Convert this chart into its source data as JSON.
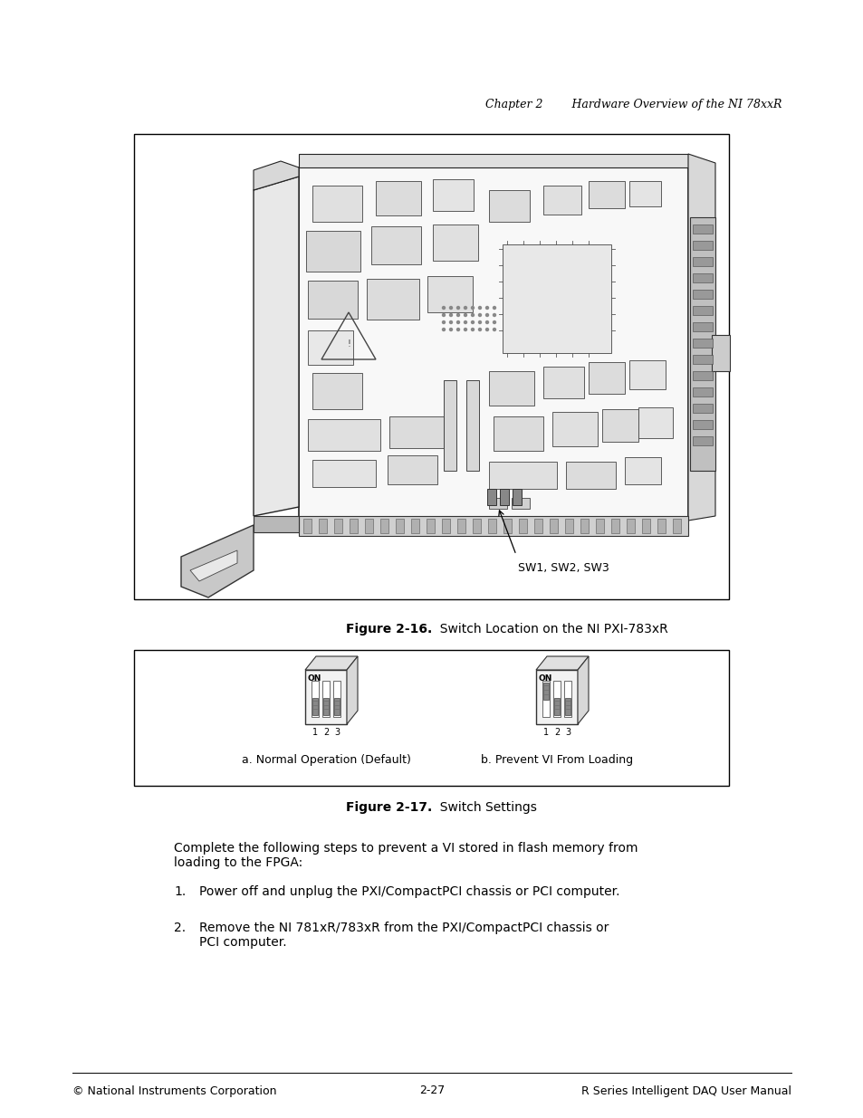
{
  "page_bg": "#ffffff",
  "header_text": "Chapter 2        Hardware Overview of the NI 78xxR",
  "header_fontsize": 9,
  "fig16_caption_bold": "Figure 2-16.",
  "fig16_caption_normal": "  Switch Location on the NI PXI-783​xR",
  "fig16_caption_fontsize": 10,
  "fig17_caption_bold": "Figure 2-17.",
  "fig17_caption_normal": "  Switch Settings",
  "fig17_caption_fontsize": 10,
  "sw_label": "SW1, SW2, SW3",
  "body_text_1": "Complete the following steps to prevent a VI stored in flash memory from\nloading to the FPGA:",
  "body_text_2a": "Power off and unplug the PXI/CompactPCI chassis or PCI computer.",
  "body_text_2b": "Remove the NI 781​xR/783​xR from the PXI/CompactPCI chassis or\nPCI computer.",
  "body_fontsize": 10,
  "footer_left": "© National Instruments Corporation",
  "footer_center": "2-27",
  "footer_right": "R Series Intelligent DAQ User Manual",
  "footer_fontsize": 9,
  "switch_a_label": "a. Normal Operation (Default)",
  "switch_b_label": "b. Prevent VI From Loading"
}
